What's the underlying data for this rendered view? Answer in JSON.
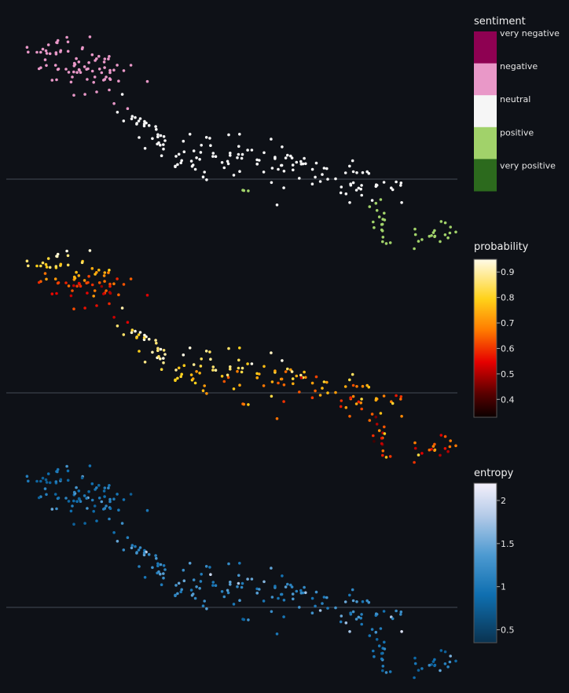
{
  "chart_data": [
    {
      "type": "scatter",
      "color_variable": "sentiment",
      "legend": {
        "title": "sentiment",
        "categories": [
          "very negative",
          "negative",
          "neutral",
          "positive",
          "very positive"
        ],
        "colors": [
          "#8e0152",
          "#e998c8",
          "#f6f6f6",
          "#a1d26a",
          "#2c6a1d"
        ]
      },
      "clusters": [
        {
          "category": "negative",
          "x": [
            0.5,
            3.0
          ],
          "y": [
            -4.4,
            -2.2
          ],
          "count": 85
        },
        {
          "category": "neutral",
          "x": [
            2.5,
            8.5
          ],
          "y": [
            -1.9,
            0.55
          ],
          "count": 150
        },
        {
          "category": "positive",
          "x": [
            7.8,
            10.4
          ],
          "y": [
            0.6,
            2.2
          ],
          "count": 55
        }
      ]
    },
    {
      "type": "scatter",
      "color_variable": "probability",
      "colorbar": {
        "title": "probability",
        "colorscale": "hot",
        "range": [
          0.33,
          0.95
        ],
        "ticks": [
          "0.9",
          "0.8",
          "0.7",
          "0.6",
          "0.5",
          "0.4"
        ],
        "tick_values": [
          0.9,
          0.8,
          0.7,
          0.6,
          0.5,
          0.4
        ]
      }
    },
    {
      "type": "scatter",
      "color_variable": "entropy",
      "colorbar": {
        "title": "entropy",
        "colorscale": "blues_reversed",
        "range": [
          0.35,
          2.2
        ],
        "ticks": [
          "2",
          "1.5",
          "1",
          "0.5"
        ],
        "tick_values": [
          2,
          1.5,
          1,
          0.5
        ]
      }
    }
  ]
}
